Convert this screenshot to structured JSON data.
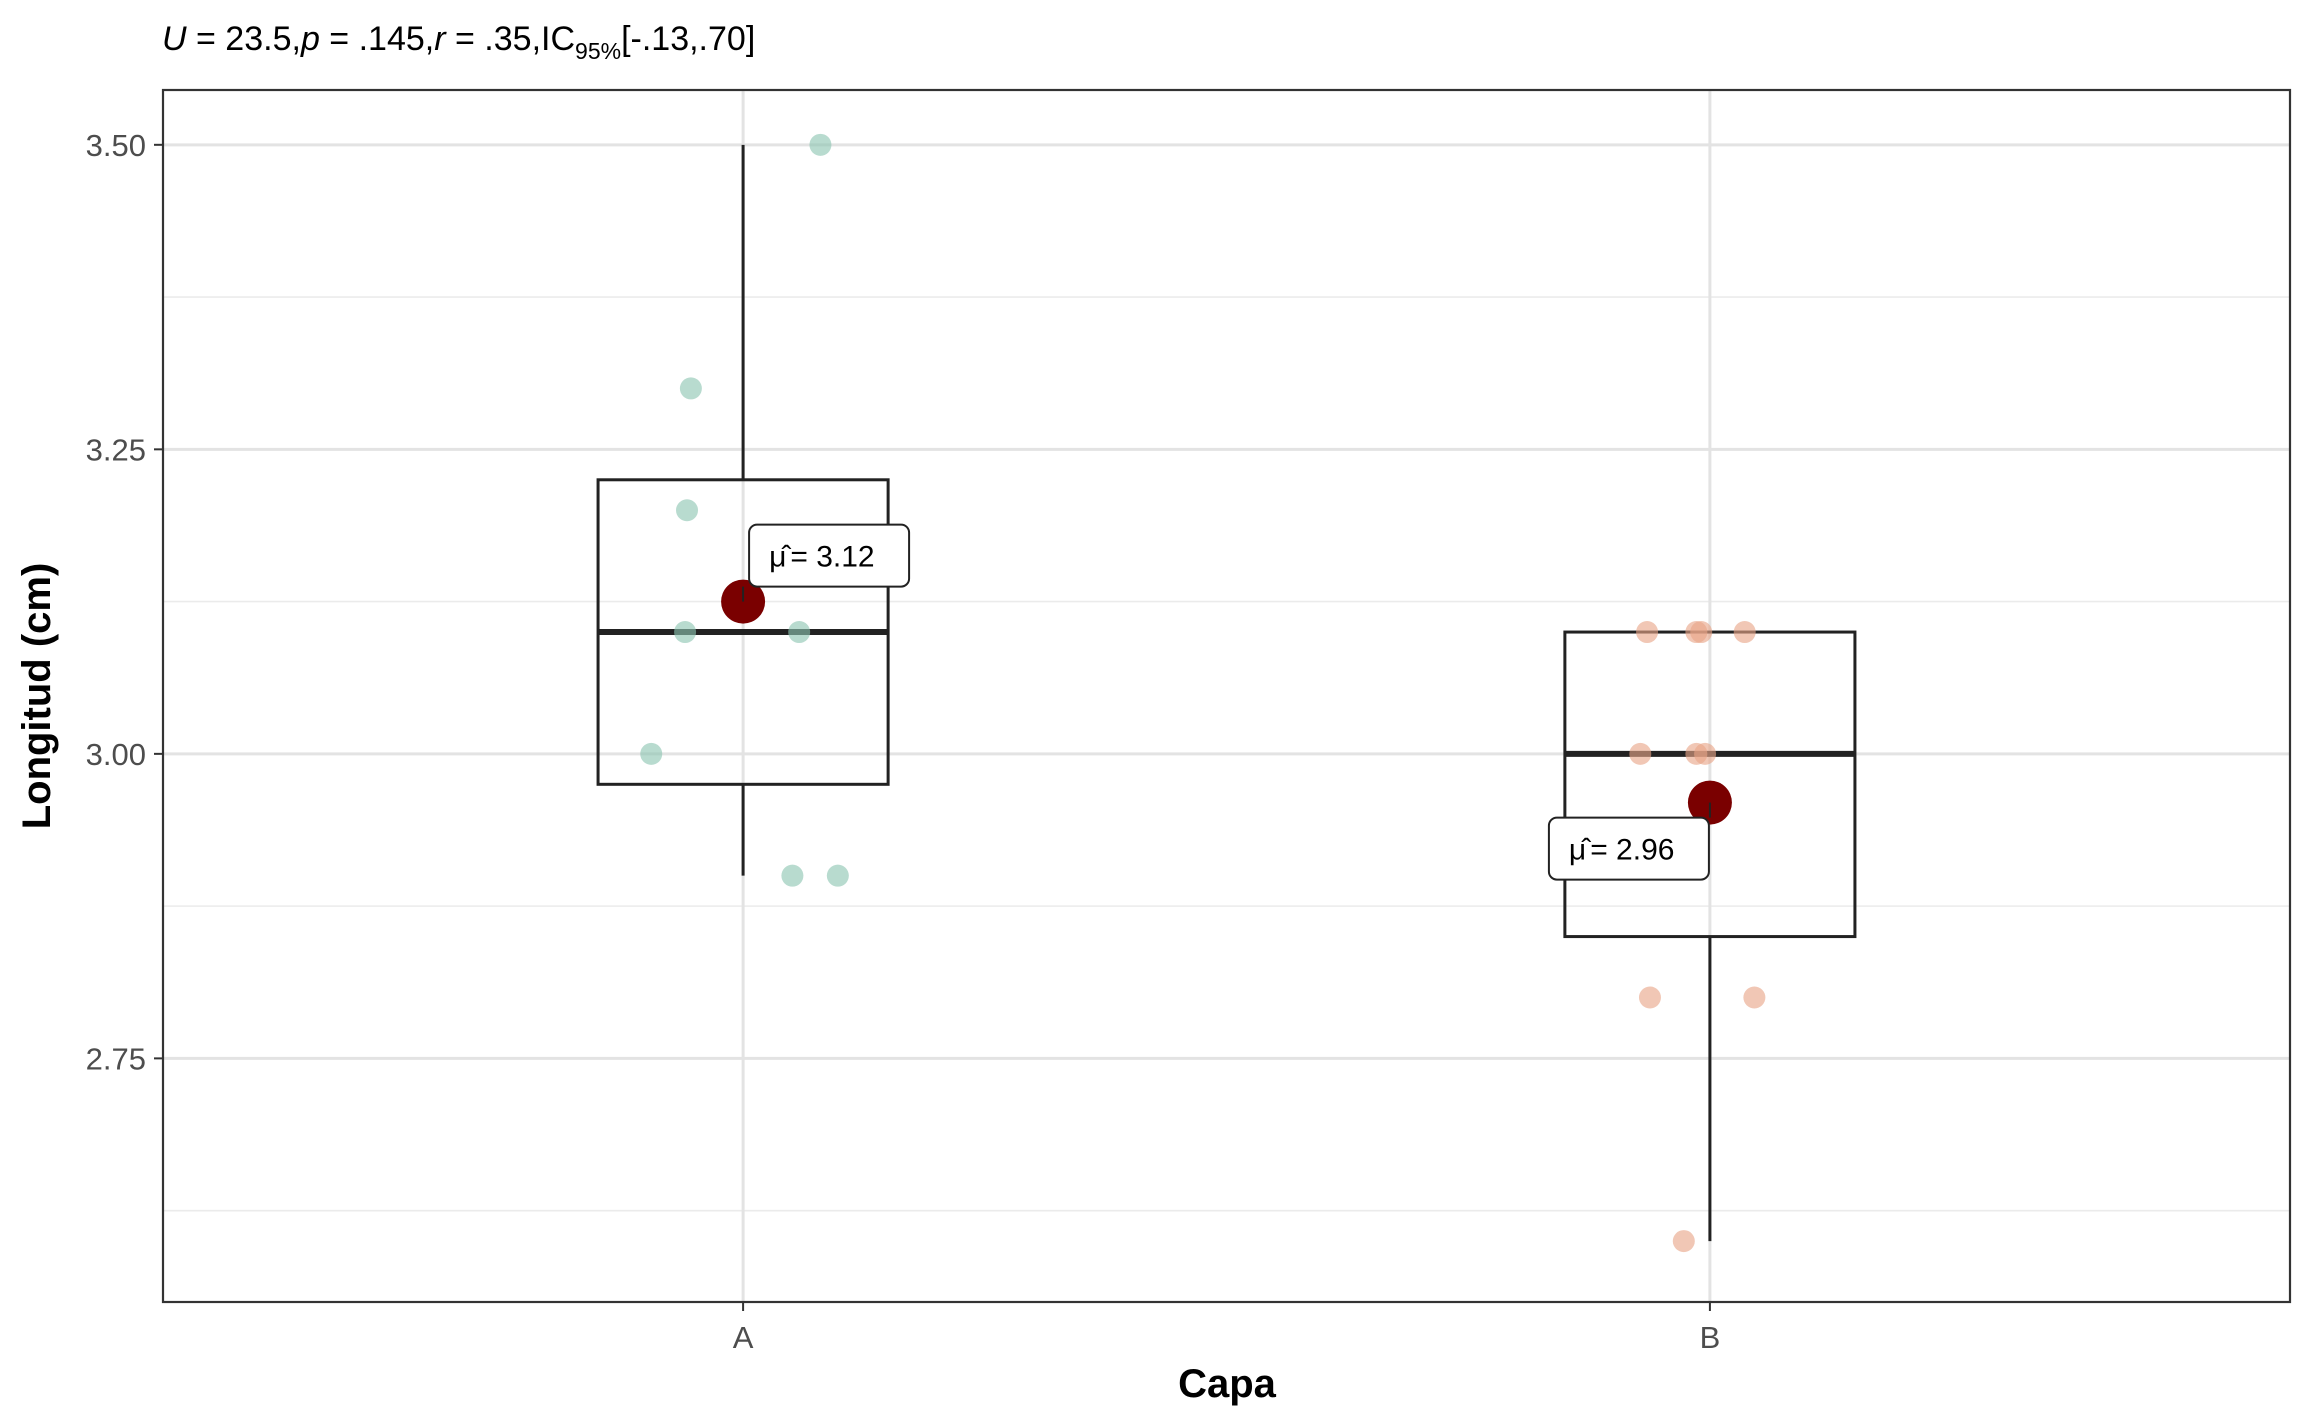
{
  "subtitle": {
    "U_label": "U",
    "U_value": " = 23.5,",
    "p_label": "p",
    "p_value": " = .145,",
    "r_label": "r",
    "r_value": " = .35,",
    "ci_label": "IC",
    "ci_sub": "95%",
    "ci_value": "[-.13,.70]"
  },
  "chart_data": {
    "type": "boxplot",
    "xlabel": "Capa",
    "ylabel": "Longitud (cm)",
    "ylim": [
      2.55,
      3.545
    ],
    "yticks": [
      2.75,
      3.0,
      3.25,
      3.5
    ],
    "ytick_labels": [
      "2.75",
      "3.00",
      "3.25",
      "3.50"
    ],
    "categories": [
      "A",
      "B"
    ],
    "groups": [
      {
        "name": "A",
        "color": "#8cc5b1",
        "whisker_low": 2.9,
        "q1": 2.975,
        "median": 3.1,
        "q3": 3.225,
        "whisker_high": 3.5,
        "mean": 3.125,
        "mean_label": "= 3.12",
        "points": [
          {
            "jitter": 0.08,
            "y": 3.5
          },
          {
            "jitter": -0.054,
            "y": 3.3
          },
          {
            "jitter": -0.058,
            "y": 3.2
          },
          {
            "jitter": -0.06,
            "y": 3.1
          },
          {
            "jitter": 0.058,
            "y": 3.1
          },
          {
            "jitter": -0.095,
            "y": 3.0
          },
          {
            "jitter": 0.051,
            "y": 2.9
          },
          {
            "jitter": 0.098,
            "y": 2.9
          }
        ]
      },
      {
        "name": "B",
        "color": "#e8a488",
        "whisker_low": 2.6,
        "q1": 2.85,
        "median": 3.0,
        "q3": 3.1,
        "whisker_high": 3.1,
        "mean": 2.96,
        "mean_label": "= 2.96",
        "points": [
          {
            "jitter": -0.065,
            "y": 3.1
          },
          {
            "jitter": -0.014,
            "y": 3.1
          },
          {
            "jitter": -0.009,
            "y": 3.1
          },
          {
            "jitter": 0.036,
            "y": 3.1
          },
          {
            "jitter": -0.072,
            "y": 3.0
          },
          {
            "jitter": -0.014,
            "y": 3.0
          },
          {
            "jitter": -0.005,
            "y": 3.0
          },
          {
            "jitter": -0.062,
            "y": 2.8
          },
          {
            "jitter": 0.046,
            "y": 2.8
          },
          {
            "jitter": -0.027,
            "y": 2.6
          }
        ]
      }
    ],
    "mean_point_color": "#7a0000",
    "mean_symbol": "μ̂",
    "grid": true
  }
}
